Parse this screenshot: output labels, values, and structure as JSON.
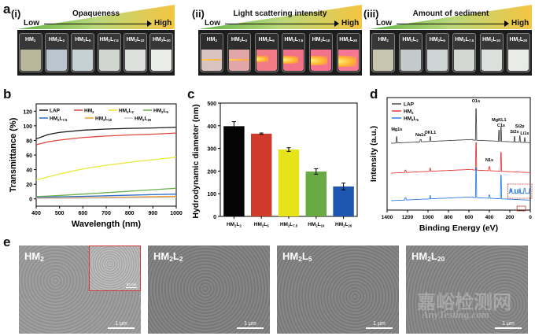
{
  "panels": {
    "a": {
      "letter": "a",
      "sub": [
        {
          "roman": "(i)",
          "title": "Opaqueness",
          "low": "Low",
          "high": "High",
          "vials": [
            {
              "base": "HM",
              "s1": "2",
              "mid": "",
              "s2": "",
              "liquid": "#b9b79b"
            },
            {
              "base": "HM",
              "s1": "2",
              "mid": "L",
              "s2": "2",
              "liquid": "#b9c6cf"
            },
            {
              "base": "HM",
              "s1": "2",
              "mid": "L",
              "s2": "5",
              "liquid": "#c6d1d6"
            },
            {
              "base": "HM",
              "s1": "2",
              "mid": "L",
              "s2": "7.5",
              "liquid": "#d2d6d0"
            },
            {
              "base": "HM",
              "s1": "2",
              "mid": "L",
              "s2": "10",
              "liquid": "#dde0dc"
            },
            {
              "base": "HM",
              "s1": "2",
              "mid": "L",
              "s2": "20",
              "liquid": "#ebede9"
            }
          ]
        },
        {
          "roman": "(ii)",
          "title": "Light scattering intensity",
          "low": "Low",
          "high": "High",
          "vials": [
            {
              "base": "HM",
              "s1": "2",
              "mid": "",
              "s2": "",
              "liquid": "#d8c3c0"
            },
            {
              "base": "HM",
              "s1": "2",
              "mid": "L",
              "s2": "2",
              "liquid": "#e3a6a6"
            },
            {
              "base": "HM",
              "s1": "2",
              "mid": "L",
              "s2": "5",
              "liquid": "#f07b86"
            },
            {
              "base": "HM",
              "s1": "2",
              "mid": "L",
              "s2": "7.5",
              "liquid": "#f2728a"
            },
            {
              "base": "HM",
              "s1": "2",
              "mid": "L",
              "s2": "10",
              "liquid": "#f4728d"
            },
            {
              "base": "HM",
              "s1": "2",
              "mid": "L",
              "s2": "20",
              "liquid": "#f57792"
            }
          ]
        },
        {
          "roman": "(iii)",
          "title": "Amount of sediment",
          "low": "Low",
          "high": "High",
          "vials": [
            {
              "base": "HM",
              "s1": "2",
              "mid": "",
              "s2": "",
              "liquid": "#c8c4ad"
            },
            {
              "base": "HM",
              "s1": "2",
              "mid": "L",
              "s2": "2",
              "liquid": "#c4c9cc"
            },
            {
              "base": "HM",
              "s1": "2",
              "mid": "L",
              "s2": "5",
              "liquid": "#ccd4d4"
            },
            {
              "base": "HM",
              "s1": "2",
              "mid": "L",
              "s2": "7.5",
              "liquid": "#d3d8d2"
            },
            {
              "base": "HM",
              "s1": "2",
              "mid": "L",
              "s2": "10",
              "liquid": "#dce0dd"
            },
            {
              "base": "HM",
              "s1": "2",
              "mid": "L",
              "s2": "20",
              "liquid": "#e9ebe6"
            }
          ]
        }
      ]
    },
    "b": {
      "letter": "b"
    },
    "c": {
      "letter": "c"
    },
    "d": {
      "letter": "d"
    },
    "e": {
      "letter": "e",
      "images": [
        {
          "base": "HM",
          "s1": "2",
          "mid": "",
          "s2": "",
          "scale": "1 μm",
          "inset_scale": "50 nm",
          "tone": "#9a9a9a"
        },
        {
          "base": "HM",
          "s1": "2",
          "mid": "L",
          "s2": "2",
          "scale": "1 μm",
          "tone": "#7e7e7e"
        },
        {
          "base": "HM",
          "s1": "2",
          "mid": "L",
          "s2": "5",
          "scale": "1 μm",
          "tone": "#808080"
        },
        {
          "base": "HM",
          "s1": "2",
          "mid": "L",
          "s2": "20",
          "scale": "1 μm",
          "tone": "#858585"
        }
      ],
      "watermark_cn": "嘉峪检测网",
      "watermark_en": "AnyTesting.com"
    }
  },
  "chart_data": [
    {
      "id": "b",
      "type": "line",
      "title": "",
      "xlabel": "Wavelength (nm)",
      "ylabel": "Transmittance (%)",
      "xlim": [
        400,
        1000
      ],
      "ylim": [
        -10,
        130
      ],
      "xticks": [
        400,
        500,
        600,
        700,
        800,
        900,
        1000
      ],
      "yticks": [
        0,
        20,
        40,
        60,
        80,
        100,
        120
      ],
      "legend": "top",
      "x": [
        400,
        450,
        500,
        600,
        700,
        800,
        900,
        1000
      ],
      "series": [
        {
          "name": "LAP",
          "label": {
            "base": "LAP",
            "s1": "",
            "mid": "",
            "s2": ""
          },
          "color": "#1a1a1a",
          "values": [
            82,
            88,
            91,
            94,
            95.5,
            96.5,
            97,
            98
          ]
        },
        {
          "name": "HM2",
          "label": {
            "base": "HM",
            "s1": "2",
            "mid": "",
            "s2": ""
          },
          "color": "#e0473c",
          "values": [
            74,
            78,
            80.5,
            84,
            86,
            87.5,
            88.5,
            90
          ]
        },
        {
          "name": "HM2L2",
          "label": {
            "base": "HM",
            "s1": "2",
            "mid": "L",
            "s2": "2"
          },
          "color": "#e8e63a",
          "values": [
            26,
            30,
            34,
            41,
            46,
            50,
            53.5,
            57
          ]
        },
        {
          "name": "HM2L5",
          "label": {
            "base": "HM",
            "s1": "2",
            "mid": "L",
            "s2": "5"
          },
          "color": "#6cb04a",
          "values": [
            3,
            3.8,
            4.6,
            6.5,
            8.5,
            10.5,
            12.5,
            14.5
          ]
        },
        {
          "name": "HM2L7.5",
          "label": {
            "base": "HM",
            "s1": "2",
            "mid": "L",
            "s2": "7.5"
          },
          "color": "#2f6fcc",
          "values": [
            2,
            2.3,
            2.7,
            3.4,
            4.2,
            5,
            5.8,
            6.5
          ]
        },
        {
          "name": "HM2L10",
          "label": {
            "base": "HM",
            "s1": "2",
            "mid": "L",
            "s2": "10"
          },
          "color": "#f39a2b",
          "values": [
            1,
            1.1,
            1.3,
            1.7,
            2.1,
            2.5,
            3,
            3.5
          ]
        },
        {
          "name": "HM2L20",
          "label": {
            "base": "HM",
            "s1": "2",
            "mid": "L",
            "s2": "20"
          },
          "color": "#c8c8c8",
          "values": [
            0.5,
            0.6,
            0.7,
            0.9,
            1.1,
            1.4,
            1.7,
            2
          ]
        }
      ]
    },
    {
      "id": "c",
      "type": "bar",
      "title": "",
      "xlabel": "",
      "ylabel": "Hydrodynamic diameter (nm)",
      "ylim": [
        0,
        500
      ],
      "yticks": [
        0,
        100,
        200,
        300,
        400,
        500
      ],
      "categories": [
        {
          "base": "HM",
          "s1": "2",
          "mid": "L",
          "s2": "2"
        },
        {
          "base": "HM",
          "s1": "2",
          "mid": "L",
          "s2": "5"
        },
        {
          "base": "HM",
          "s1": "2",
          "mid": "L",
          "s2": "7.5"
        },
        {
          "base": "HM",
          "s1": "2",
          "mid": "L",
          "s2": "10"
        },
        {
          "base": "HM",
          "s1": "2",
          "mid": "L",
          "s2": "20"
        }
      ],
      "values": [
        398,
        365,
        295,
        198,
        132
      ],
      "errors": [
        20,
        3,
        8,
        12,
        15
      ],
      "colors": [
        "#050505",
        "#d13a2a",
        "#e6e31a",
        "#6aaa45",
        "#1f56b0"
      ]
    },
    {
      "id": "d",
      "type": "line",
      "title": "",
      "xlabel": "Binding Energy (eV)",
      "ylabel": "Intensity (a.u.)",
      "xlim": [
        1400,
        0
      ],
      "xticks": [
        1400,
        1200,
        1000,
        800,
        600,
        400,
        200,
        0
      ],
      "legend": "top-left",
      "series": [
        {
          "name": "LAP",
          "label": {
            "base": "LAP",
            "s1": "",
            "mid": "",
            "s2": ""
          },
          "color": "#4a4a4a"
        },
        {
          "name": "HM2",
          "label": {
            "base": "HM",
            "s1": "2",
            "mid": "",
            "s2": ""
          },
          "color": "#e8393a"
        },
        {
          "name": "HM2L5",
          "label": {
            "base": "HM",
            "s1": "2",
            "mid": "L",
            "s2": "5"
          },
          "color": "#2f7fe0"
        }
      ],
      "annotations": [
        {
          "text": "Mg1s",
          "x": 1305
        },
        {
          "text": "Na1s",
          "x": 1072
        },
        {
          "text": "OKL1",
          "x": 978
        },
        {
          "text": "O1s",
          "x": 531
        },
        {
          "text": "MgKL1",
          "x": 305
        },
        {
          "text": "C1s",
          "x": 285
        },
        {
          "text": "Si2s",
          "x": 154
        },
        {
          "text": "Si2p",
          "x": 102
        },
        {
          "text": "Li1s",
          "x": 55
        },
        {
          "text": "N1s",
          "x": 400
        }
      ]
    }
  ]
}
